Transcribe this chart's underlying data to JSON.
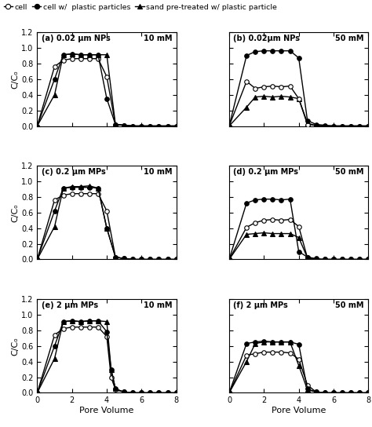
{
  "panels": [
    {
      "label": "(a) 0.02 μm NPs",
      "concentration": "10 mM",
      "row": 0,
      "col": 0,
      "cell": {
        "x": [
          0,
          1,
          1.5,
          2,
          2.5,
          3,
          3.5,
          4,
          4.5,
          5,
          5.5,
          6,
          6.5,
          7,
          7.5,
          8
        ],
        "y": [
          0,
          0.76,
          0.84,
          0.86,
          0.86,
          0.86,
          0.86,
          0.63,
          0.02,
          0.01,
          0.0,
          0.0,
          0.0,
          0.0,
          0.0,
          0.0
        ]
      },
      "cell_plastic": {
        "x": [
          0,
          1,
          1.5,
          2,
          2.5,
          3,
          3.5,
          4,
          4.5,
          5,
          5.5,
          6,
          6.5,
          7,
          7.5,
          8
        ],
        "y": [
          0,
          0.6,
          0.91,
          0.92,
          0.91,
          0.91,
          0.91,
          0.35,
          0.02,
          0.01,
          0.0,
          0.0,
          0.0,
          0.0,
          0.0,
          0.0
        ]
      },
      "sand_plastic": {
        "x": [
          0,
          1,
          1.5,
          2,
          2.5,
          3,
          3.5,
          4,
          4.5,
          5,
          5.5,
          6,
          6.5,
          7,
          7.5,
          8
        ],
        "y": [
          0,
          0.4,
          0.91,
          0.92,
          0.91,
          0.91,
          0.91,
          0.91,
          0.02,
          0.01,
          0.0,
          0.0,
          0.0,
          0.0,
          0.0,
          0.0
        ]
      }
    },
    {
      "label": "(b) 0.02μm NPs",
      "concentration": "50 mM",
      "row": 0,
      "col": 1,
      "cell": {
        "x": [
          0,
          1,
          1.5,
          2,
          2.5,
          3,
          3.5,
          4,
          4.5,
          5,
          5.5,
          6,
          6.5,
          7,
          7.5,
          8
        ],
        "y": [
          0,
          0.57,
          0.48,
          0.5,
          0.51,
          0.5,
          0.51,
          0.35,
          0.02,
          0.01,
          0.0,
          0.0,
          0.0,
          0.0,
          0.0,
          0.0
        ]
      },
      "cell_plastic": {
        "x": [
          0,
          1,
          1.5,
          2,
          2.5,
          3,
          3.5,
          4,
          4.5,
          5,
          5.5,
          6,
          6.5,
          7,
          7.5,
          8
        ],
        "y": [
          0,
          0.9,
          0.95,
          0.96,
          0.96,
          0.96,
          0.96,
          0.87,
          0.07,
          0.02,
          0.01,
          0.0,
          0.0,
          0.0,
          0.0,
          0.0
        ]
      },
      "sand_plastic": {
        "x": [
          0,
          1,
          1.5,
          2,
          2.5,
          3,
          3.5,
          4,
          4.5,
          5,
          5.5,
          6,
          6.5,
          7,
          7.5,
          8
        ],
        "y": [
          0,
          0.24,
          0.37,
          0.38,
          0.37,
          0.38,
          0.37,
          0.35,
          0.04,
          0.0,
          0.0,
          0.0,
          0.0,
          0.0,
          0.0,
          0.0
        ]
      }
    },
    {
      "label": "(c) 0.2 μm MPs",
      "concentration": "10 mM",
      "row": 1,
      "col": 0,
      "cell": {
        "x": [
          0,
          1,
          1.5,
          2,
          2.5,
          3,
          3.5,
          4,
          4.5,
          5,
          5.5,
          6,
          6.5,
          7,
          7.5,
          8
        ],
        "y": [
          0,
          0.76,
          0.82,
          0.84,
          0.84,
          0.84,
          0.84,
          0.62,
          0.03,
          0.01,
          0.0,
          0.0,
          0.0,
          0.0,
          0.0,
          0.0
        ]
      },
      "cell_plastic": {
        "x": [
          0,
          1,
          1.5,
          2,
          2.5,
          3,
          3.5,
          4,
          4.5,
          5,
          5.5,
          6,
          6.5,
          7,
          7.5,
          8
        ],
        "y": [
          0,
          0.62,
          0.91,
          0.92,
          0.92,
          0.92,
          0.91,
          0.4,
          0.03,
          0.01,
          0.0,
          0.0,
          0.0,
          0.0,
          0.0,
          0.0
        ]
      },
      "sand_plastic": {
        "x": [
          0,
          1,
          1.5,
          2,
          2.5,
          3,
          3.5,
          4,
          4.5,
          5,
          5.5,
          6,
          6.5,
          7,
          7.5,
          8
        ],
        "y": [
          0,
          0.42,
          0.91,
          0.93,
          0.93,
          0.94,
          0.91,
          0.4,
          0.03,
          0.01,
          0.0,
          0.0,
          0.0,
          0.0,
          0.0,
          0.0
        ]
      }
    },
    {
      "label": "(d) 0.2 μm MPs",
      "concentration": "50 mM",
      "row": 1,
      "col": 1,
      "cell": {
        "x": [
          0,
          1,
          1.5,
          2,
          2.5,
          3,
          3.5,
          4,
          4.5,
          5,
          5.5,
          6,
          6.5,
          7,
          7.5,
          8
        ],
        "y": [
          0,
          0.41,
          0.47,
          0.5,
          0.51,
          0.5,
          0.51,
          0.42,
          0.02,
          0.0,
          0.0,
          0.0,
          0.0,
          0.0,
          0.0,
          0.0
        ]
      },
      "cell_plastic": {
        "x": [
          0,
          1,
          1.5,
          2,
          2.5,
          3,
          3.5,
          4,
          4.5,
          5,
          5.5,
          6,
          6.5,
          7,
          7.5,
          8
        ],
        "y": [
          0,
          0.72,
          0.76,
          0.77,
          0.77,
          0.76,
          0.77,
          0.1,
          0.03,
          0.01,
          0.0,
          0.0,
          0.0,
          0.0,
          0.0,
          0.0
        ]
      },
      "sand_plastic": {
        "x": [
          0,
          1,
          1.5,
          2,
          2.5,
          3,
          3.5,
          4,
          4.5,
          5,
          5.5,
          6,
          6.5,
          7,
          7.5,
          8
        ],
        "y": [
          0,
          0.32,
          0.33,
          0.34,
          0.33,
          0.33,
          0.33,
          0.28,
          0.02,
          0.0,
          0.0,
          0.0,
          0.0,
          0.0,
          0.0,
          0.0
        ]
      }
    },
    {
      "label": "(e) 2 μm MPs",
      "concentration": "10 mM",
      "row": 2,
      "col": 0,
      "cell": {
        "x": [
          0,
          1,
          1.5,
          2,
          2.5,
          3,
          3.5,
          4,
          4.25,
          4.5,
          5,
          5.5,
          6,
          6.5,
          7,
          7.5,
          8
        ],
        "y": [
          0,
          0.74,
          0.82,
          0.84,
          0.84,
          0.84,
          0.84,
          0.72,
          0.2,
          0.04,
          0.01,
          0.0,
          0.0,
          0.0,
          0.0,
          0.0,
          0.0
        ]
      },
      "cell_plastic": {
        "x": [
          0,
          1,
          1.5,
          2,
          2.5,
          3,
          3.5,
          4,
          4.25,
          4.5,
          5,
          5.5,
          6,
          6.5,
          7,
          7.5,
          8
        ],
        "y": [
          0,
          0.6,
          0.91,
          0.92,
          0.91,
          0.92,
          0.92,
          0.78,
          0.3,
          0.05,
          0.01,
          0.0,
          0.0,
          0.0,
          0.0,
          0.0,
          0.0
        ]
      },
      "sand_plastic": {
        "x": [
          0,
          1,
          1.5,
          2,
          2.5,
          3,
          3.5,
          4,
          4.25,
          4.5,
          5,
          5.5,
          6,
          6.5,
          7,
          7.5,
          8
        ],
        "y": [
          0,
          0.44,
          0.91,
          0.92,
          0.91,
          0.92,
          0.92,
          0.91,
          0.3,
          0.05,
          0.01,
          0.0,
          0.0,
          0.0,
          0.0,
          0.0,
          0.0
        ]
      }
    },
    {
      "label": "(f) 2 μm MPs",
      "concentration": "50 mM",
      "row": 2,
      "col": 1,
      "cell": {
        "x": [
          0,
          1,
          1.5,
          2,
          2.5,
          3,
          3.5,
          4,
          4.5,
          5,
          5.5,
          6,
          6.5,
          7,
          7.5,
          8
        ],
        "y": [
          0,
          0.48,
          0.5,
          0.52,
          0.52,
          0.52,
          0.51,
          0.43,
          0.1,
          0.01,
          0.0,
          0.0,
          0.0,
          0.0,
          0.0,
          0.0
        ]
      },
      "cell_plastic": {
        "x": [
          0,
          1,
          1.5,
          2,
          2.5,
          3,
          3.5,
          4,
          4.5,
          5,
          5.5,
          6,
          6.5,
          7,
          7.5,
          8
        ],
        "y": [
          0,
          0.63,
          0.65,
          0.66,
          0.65,
          0.65,
          0.65,
          0.62,
          0.05,
          0.01,
          0.0,
          0.0,
          0.0,
          0.0,
          0.0,
          0.0
        ]
      },
      "sand_plastic": {
        "x": [
          0,
          1,
          1.5,
          2,
          2.5,
          3,
          3.5,
          4,
          4.5,
          5,
          5.5,
          6,
          6.5,
          7,
          7.5,
          8
        ],
        "y": [
          0,
          0.4,
          0.63,
          0.65,
          0.65,
          0.65,
          0.65,
          0.35,
          0.04,
          0.01,
          0.0,
          0.0,
          0.0,
          0.0,
          0.0,
          0.0
        ]
      }
    }
  ],
  "legend": {
    "cell_label": "cell",
    "cell_plastic_label": "cell w/  plastic particles",
    "sand_plastic_label": "sand pre-treated w/ plastic particle"
  },
  "xlabel": "Pore Volume",
  "ylabel": "C/Cₒ",
  "xlim": [
    0,
    8
  ],
  "ylim": [
    0,
    1.2
  ],
  "yticks": [
    0.0,
    0.2,
    0.4,
    0.6,
    0.8,
    1.0,
    1.2
  ],
  "xticks": [
    0,
    2,
    4,
    6,
    8
  ],
  "linewidth": 1.0,
  "markersize": 4,
  "fig_width": 4.74,
  "fig_height": 5.44,
  "dpi": 100
}
